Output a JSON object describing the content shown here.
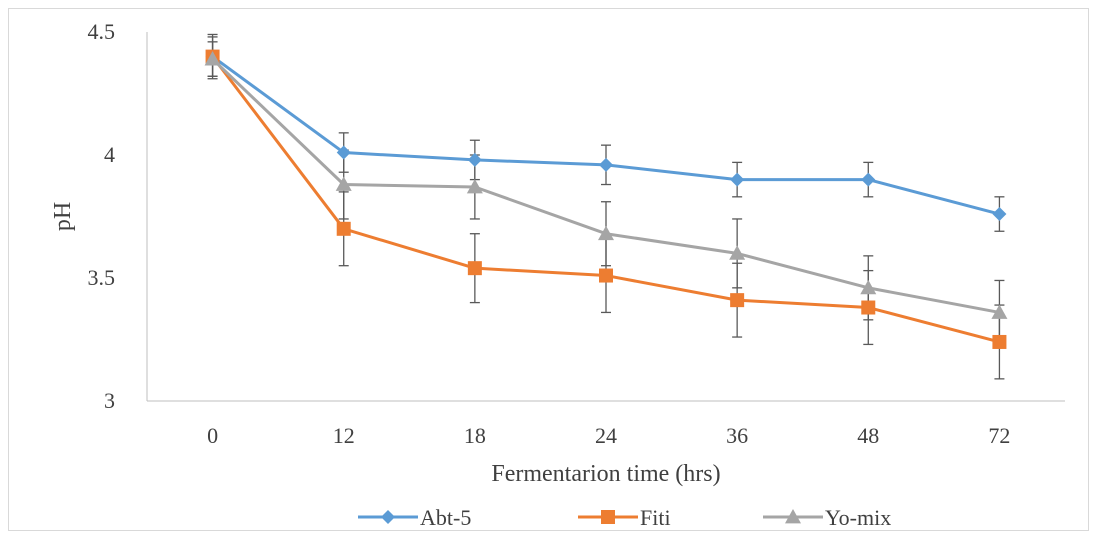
{
  "chart_data": {
    "type": "line",
    "title": "",
    "xlabel": "Fermentarion time (hrs)",
    "ylabel": "pH",
    "categories": [
      "0",
      "12",
      "18",
      "24",
      "36",
      "48",
      "72"
    ],
    "ylim": [
      3,
      4.5
    ],
    "yticks": [
      3,
      3.5,
      4,
      4.5
    ],
    "ytick_labels": [
      "3",
      "3.5",
      "4",
      "4.5"
    ],
    "grid": false,
    "legend_position": "bottom",
    "series": [
      {
        "name": "Abt-5",
        "color": "#5b9bd5",
        "marker": "diamond",
        "values": [
          4.4,
          4.01,
          3.98,
          3.96,
          3.9,
          3.9,
          3.76
        ],
        "errors": [
          0.09,
          0.08,
          0.08,
          0.08,
          0.07,
          0.07,
          0.07
        ]
      },
      {
        "name": "Fiti",
        "color": "#ed7d31",
        "marker": "square",
        "values": [
          4.4,
          3.7,
          3.54,
          3.51,
          3.41,
          3.38,
          3.24
        ],
        "errors": [
          0.08,
          0.15,
          0.14,
          0.15,
          0.15,
          0.15,
          0.15
        ]
      },
      {
        "name": "Yo-mix",
        "color": "#a5a5a5",
        "marker": "triangle",
        "values": [
          4.39,
          3.88,
          3.87,
          3.68,
          3.6,
          3.46,
          3.36
        ],
        "errors": [
          0.07,
          0.14,
          0.13,
          0.13,
          0.14,
          0.13,
          0.13
        ]
      }
    ]
  }
}
